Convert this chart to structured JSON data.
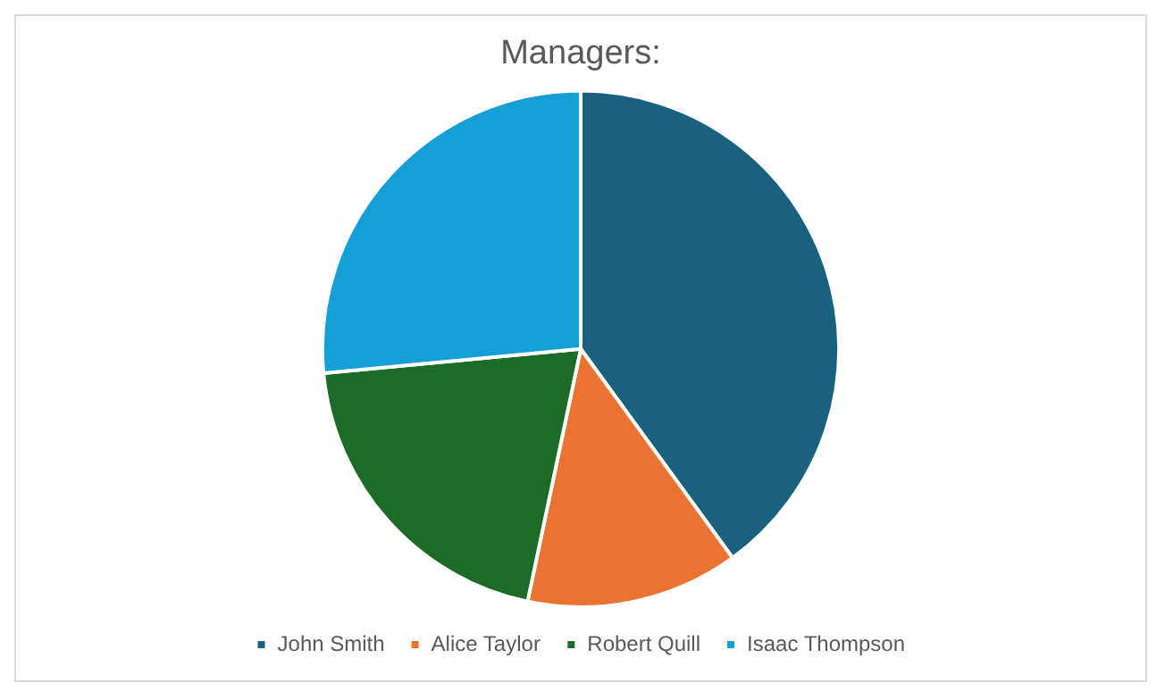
{
  "chart_data": {
    "type": "pie",
    "title": "Managers:",
    "categories": [
      "John Smith",
      "Alice Taylor",
      "Robert Quill",
      "Isaac Thompson"
    ],
    "values": [
      40,
      13.3,
      20.2,
      26.5
    ],
    "colors": [
      "#19617f",
      "#eb7331",
      "#1c6b26",
      "#149fd6"
    ],
    "legend": "bottom"
  }
}
